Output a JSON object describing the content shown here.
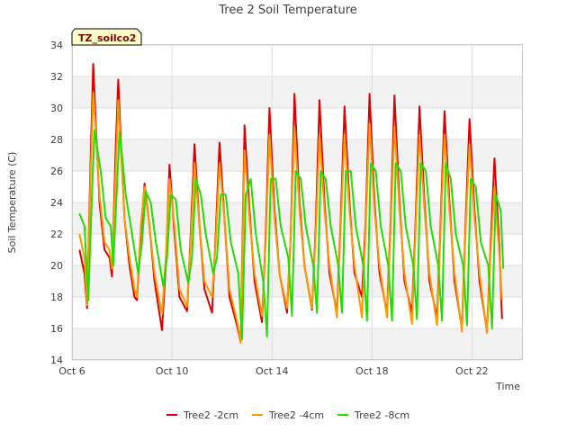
{
  "chart_data": {
    "type": "line",
    "title": "Tree 2 Soil Temperature",
    "xlabel": "Time",
    "ylabel": "Soil Temperature (C)",
    "tag": "TZ_soilco2",
    "xlim": [
      "Oct 6",
      "Oct 24"
    ],
    "ylim": [
      14,
      34
    ],
    "yticks": [
      14,
      16,
      18,
      20,
      22,
      24,
      26,
      28,
      30,
      32,
      34
    ],
    "xticks": [
      "Oct 6",
      "Oct 10",
      "Oct 14",
      "Oct 18",
      "Oct 22"
    ],
    "x_unit": "day offset from Oct 6",
    "grid": true,
    "legend_position": "bottom",
    "series": [
      {
        "name": "Tree2 -2cm",
        "color": "#dd0000",
        "x": [
          0.3,
          0.5,
          0.6,
          0.75,
          0.85,
          0.95,
          1.1,
          1.3,
          1.5,
          1.6,
          1.75,
          1.85,
          1.95,
          2.1,
          2.3,
          2.5,
          2.6,
          2.75,
          2.9,
          3.1,
          3.3,
          3.6,
          3.75,
          3.9,
          4.1,
          4.3,
          4.6,
          4.75,
          4.9,
          5.1,
          5.3,
          5.6,
          5.75,
          5.9,
          6.1,
          6.3,
          6.6,
          6.75,
          6.9,
          7.1,
          7.3,
          7.6,
          7.75,
          7.9,
          8.1,
          8.3,
          8.6,
          8.75,
          8.9,
          9.1,
          9.3,
          9.6,
          9.75,
          9.9,
          10.1,
          10.3,
          10.6,
          10.75,
          10.9,
          11.1,
          11.3,
          11.6,
          11.75,
          11.9,
          12.1,
          12.3,
          12.6,
          12.75,
          12.9,
          13.1,
          13.3,
          13.6,
          13.75,
          13.9,
          14.1,
          14.3,
          14.6,
          14.75,
          14.9,
          15.1,
          15.3,
          15.6,
          15.75,
          15.9,
          16.1,
          16.3,
          16.6,
          16.75,
          16.9,
          17.1,
          17.2
        ],
        "y": [
          21.0,
          19.5,
          17.3,
          27.0,
          32.8,
          29.0,
          24.0,
          21.0,
          20.5,
          19.3,
          27.5,
          31.8,
          28.0,
          23.0,
          20.0,
          18.0,
          17.8,
          22.0,
          25.2,
          22.5,
          19.0,
          15.9,
          20.0,
          26.4,
          22.0,
          18.0,
          17.1,
          22.0,
          27.7,
          22.5,
          18.5,
          17.0,
          22.0,
          27.8,
          23.0,
          18.0,
          16.2,
          15.1,
          28.9,
          23.5,
          19.0,
          16.4,
          22.0,
          30.0,
          23.5,
          19.5,
          17.0,
          22.0,
          30.9,
          24.0,
          20.0,
          17.2,
          22.5,
          30.5,
          24.0,
          19.5,
          17.0,
          23.0,
          30.1,
          24.0,
          19.5,
          18.0,
          23.0,
          30.9,
          24.0,
          19.5,
          17.0,
          23.0,
          30.8,
          24.0,
          19.0,
          17.0,
          23.0,
          30.1,
          24.0,
          19.0,
          16.7,
          23.0,
          29.8,
          24.0,
          19.0,
          16.0,
          23.0,
          29.3,
          23.5,
          19.0,
          15.8,
          21.5,
          26.8,
          21.0,
          16.6
        ]
      },
      {
        "name": "Tree2 -4cm",
        "color": "#ff9900",
        "x": [
          0.3,
          0.5,
          0.6,
          0.75,
          0.85,
          0.95,
          1.1,
          1.3,
          1.5,
          1.6,
          1.75,
          1.85,
          1.95,
          2.1,
          2.3,
          2.5,
          2.6,
          2.75,
          2.9,
          3.1,
          3.3,
          3.6,
          3.75,
          3.9,
          4.1,
          4.3,
          4.6,
          4.75,
          4.9,
          5.1,
          5.3,
          5.6,
          5.75,
          5.9,
          6.1,
          6.3,
          6.6,
          6.75,
          6.9,
          7.1,
          7.3,
          7.6,
          7.75,
          7.9,
          8.1,
          8.3,
          8.6,
          8.75,
          8.9,
          9.1,
          9.3,
          9.6,
          9.75,
          9.9,
          10.1,
          10.3,
          10.6,
          10.75,
          10.9,
          11.1,
          11.3,
          11.6,
          11.75,
          11.9,
          12.1,
          12.3,
          12.6,
          12.75,
          12.9,
          13.1,
          13.3,
          13.6,
          13.75,
          13.9,
          14.1,
          14.3,
          14.6,
          14.75,
          14.9,
          15.1,
          15.3,
          15.6,
          15.75,
          15.9,
          16.1,
          16.3,
          16.6,
          16.75,
          16.9,
          17.1,
          17.2
        ],
        "y": [
          22.0,
          20.5,
          17.5,
          26.0,
          31.0,
          28.5,
          24.5,
          21.5,
          21.0,
          19.8,
          26.0,
          30.5,
          27.5,
          23.0,
          20.5,
          18.5,
          18.0,
          22.5,
          25.0,
          22.5,
          19.5,
          16.9,
          20.5,
          25.5,
          22.5,
          18.5,
          17.4,
          21.5,
          26.5,
          22.5,
          19.0,
          18.0,
          21.5,
          26.5,
          23.0,
          18.5,
          16.5,
          15.1,
          27.3,
          23.0,
          19.5,
          16.8,
          21.5,
          28.3,
          23.0,
          19.5,
          17.3,
          22.0,
          28.8,
          23.5,
          20.0,
          17.3,
          22.0,
          28.3,
          23.5,
          20.0,
          16.7,
          22.5,
          28.3,
          23.5,
          20.0,
          16.7,
          22.5,
          29.0,
          23.5,
          20.0,
          16.7,
          22.5,
          28.8,
          23.5,
          19.5,
          16.3,
          22.5,
          28.3,
          23.5,
          19.5,
          16.2,
          22.5,
          28.3,
          23.5,
          19.5,
          15.8,
          22.5,
          27.7,
          23.0,
          19.5,
          15.7,
          21.0,
          25.0,
          20.5,
          17.8
        ]
      },
      {
        "name": "Tree2 -8cm",
        "color": "#22dd00",
        "x": [
          0.3,
          0.5,
          0.65,
          0.8,
          0.9,
          1.0,
          1.15,
          1.35,
          1.55,
          1.65,
          1.8,
          1.9,
          2.0,
          2.15,
          2.35,
          2.55,
          2.65,
          2.8,
          2.95,
          3.15,
          3.35,
          3.65,
          3.8,
          3.95,
          4.15,
          4.35,
          4.65,
          4.8,
          4.95,
          5.15,
          5.35,
          5.65,
          5.8,
          5.95,
          6.15,
          6.35,
          6.65,
          6.8,
          6.95,
          7.15,
          7.35,
          7.65,
          7.8,
          7.95,
          8.15,
          8.35,
          8.65,
          8.8,
          8.95,
          9.15,
          9.35,
          9.65,
          9.8,
          9.95,
          10.15,
          10.35,
          10.65,
          10.8,
          10.95,
          11.15,
          11.35,
          11.65,
          11.8,
          11.95,
          12.15,
          12.35,
          12.65,
          12.8,
          12.95,
          13.15,
          13.35,
          13.65,
          13.8,
          13.95,
          14.15,
          14.35,
          14.65,
          14.8,
          14.95,
          15.15,
          15.35,
          15.65,
          15.8,
          15.95,
          16.15,
          16.35,
          16.65,
          16.8,
          16.95,
          17.15,
          17.25
        ],
        "y": [
          23.3,
          22.5,
          17.8,
          24.5,
          28.6,
          27.5,
          26.0,
          23.0,
          22.5,
          20.0,
          25.0,
          28.5,
          27.0,
          24.5,
          22.5,
          20.5,
          19.5,
          21.5,
          24.7,
          24.0,
          21.5,
          18.7,
          20.5,
          24.5,
          24.2,
          21.0,
          18.9,
          20.5,
          25.5,
          24.5,
          22.0,
          19.5,
          20.5,
          24.5,
          24.5,
          21.5,
          19.5,
          15.3,
          24.5,
          25.5,
          22.0,
          19.0,
          15.5,
          25.5,
          25.5,
          22.5,
          20.5,
          16.8,
          26.0,
          25.5,
          22.5,
          20.0,
          17.0,
          26.0,
          25.5,
          22.5,
          20.0,
          17.0,
          26.0,
          26.0,
          22.5,
          20.0,
          16.5,
          26.5,
          26.0,
          22.5,
          20.0,
          16.5,
          26.5,
          26.0,
          22.5,
          20.0,
          16.6,
          26.5,
          26.0,
          22.5,
          20.0,
          16.5,
          26.5,
          25.5,
          22.0,
          20.0,
          16.2,
          25.5,
          25.0,
          21.5,
          20.0,
          16.0,
          24.5,
          23.5,
          19.8
        ]
      }
    ]
  }
}
